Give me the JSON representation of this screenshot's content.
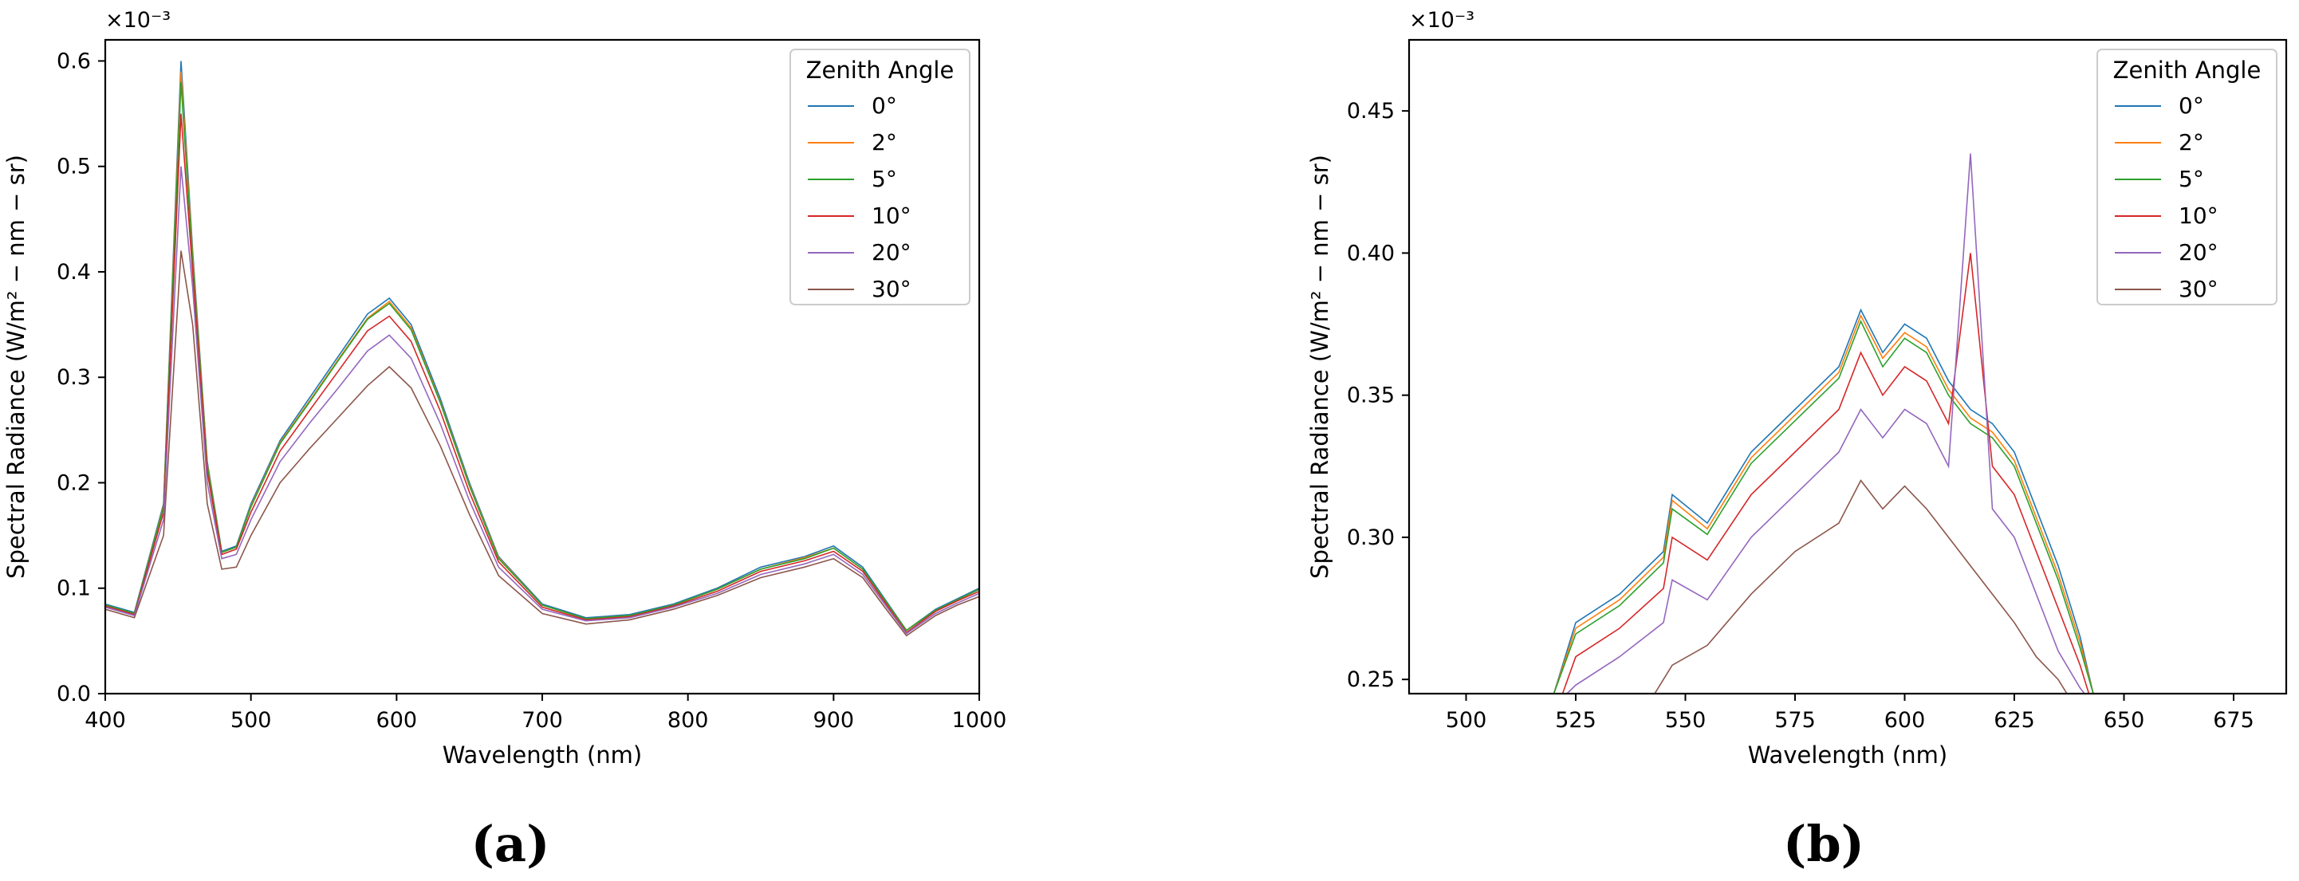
{
  "chart_data": [
    {
      "panel": "(a)",
      "type": "line",
      "xlabel": "Wavelength (nm)",
      "ylabel": "Spectral Radiance (W/m² − nm − sr)",
      "y_multiplier": "×10⁻³",
      "xlim": [
        400,
        1000
      ],
      "ylim": [
        0,
        0.62
      ],
      "xticks": [
        400,
        500,
        600,
        700,
        800,
        900,
        1000
      ],
      "yticks": [
        0.0,
        0.1,
        0.2,
        0.3,
        0.4,
        0.5,
        0.6
      ],
      "ytick_labels": [
        "0.0",
        "0.1",
        "0.2",
        "0.3",
        "0.4",
        "0.5",
        "0.6"
      ],
      "grid": false,
      "legend": {
        "title": "Zenith Angle",
        "placement": "top-right",
        "entries": [
          "0°",
          "2°",
          "5°",
          "10°",
          "20°",
          "30°"
        ]
      },
      "series": [
        {
          "name": "0°",
          "color": "#1f77b4",
          "x": [
            400,
            420,
            440,
            452,
            460,
            470,
            480,
            490,
            500,
            520,
            540,
            560,
            580,
            595,
            610,
            630,
            650,
            670,
            700,
            730,
            760,
            790,
            820,
            850,
            880,
            900,
            920,
            935,
            950,
            970,
            985,
            1000
          ],
          "y": [
            0.085,
            0.077,
            0.18,
            0.6,
            0.42,
            0.22,
            0.135,
            0.14,
            0.18,
            0.24,
            0.28,
            0.32,
            0.36,
            0.375,
            0.35,
            0.28,
            0.2,
            0.13,
            0.085,
            0.072,
            0.075,
            0.085,
            0.1,
            0.12,
            0.13,
            0.14,
            0.12,
            0.09,
            0.06,
            0.08,
            0.09,
            0.1
          ]
        },
        {
          "name": "2°",
          "color": "#ff7f0e",
          "x": [
            400,
            420,
            440,
            452,
            460,
            470,
            480,
            490,
            500,
            520,
            540,
            560,
            580,
            595,
            610,
            630,
            650,
            670,
            700,
            730,
            760,
            790,
            820,
            850,
            880,
            900,
            920,
            935,
            950,
            970,
            985,
            1000
          ],
          "y": [
            0.084,
            0.076,
            0.178,
            0.59,
            0.415,
            0.218,
            0.134,
            0.139,
            0.178,
            0.238,
            0.277,
            0.317,
            0.356,
            0.372,
            0.347,
            0.277,
            0.198,
            0.129,
            0.084,
            0.071,
            0.074,
            0.084,
            0.099,
            0.118,
            0.129,
            0.138,
            0.118,
            0.089,
            0.06,
            0.079,
            0.089,
            0.099
          ]
        },
        {
          "name": "5°",
          "color": "#2ca02c",
          "x": [
            400,
            420,
            440,
            452,
            460,
            470,
            480,
            490,
            500,
            520,
            540,
            560,
            580,
            595,
            610,
            630,
            650,
            670,
            700,
            730,
            760,
            790,
            820,
            850,
            880,
            900,
            920,
            935,
            950,
            970,
            985,
            1000
          ],
          "y": [
            0.084,
            0.076,
            0.177,
            0.58,
            0.41,
            0.216,
            0.134,
            0.139,
            0.177,
            0.237,
            0.276,
            0.316,
            0.355,
            0.37,
            0.345,
            0.276,
            0.197,
            0.128,
            0.084,
            0.071,
            0.074,
            0.084,
            0.099,
            0.118,
            0.128,
            0.138,
            0.118,
            0.089,
            0.06,
            0.079,
            0.089,
            0.099
          ]
        },
        {
          "name": "10°",
          "color": "#d62728",
          "x": [
            400,
            420,
            440,
            452,
            460,
            470,
            480,
            490,
            500,
            520,
            540,
            560,
            580,
            595,
            610,
            630,
            650,
            670,
            700,
            730,
            760,
            790,
            820,
            850,
            880,
            900,
            920,
            935,
            950,
            970,
            985,
            1000
          ],
          "y": [
            0.083,
            0.075,
            0.172,
            0.55,
            0.4,
            0.21,
            0.132,
            0.137,
            0.172,
            0.23,
            0.268,
            0.306,
            0.344,
            0.358,
            0.334,
            0.268,
            0.191,
            0.125,
            0.082,
            0.07,
            0.073,
            0.083,
            0.097,
            0.116,
            0.126,
            0.135,
            0.116,
            0.087,
            0.058,
            0.078,
            0.088,
            0.097
          ]
        },
        {
          "name": "20°",
          "color": "#9467bd",
          "x": [
            400,
            420,
            440,
            452,
            460,
            470,
            480,
            490,
            500,
            520,
            540,
            560,
            580,
            595,
            610,
            630,
            650,
            670,
            700,
            730,
            760,
            790,
            820,
            850,
            880,
            900,
            920,
            935,
            950,
            970,
            985,
            1000
          ],
          "y": [
            0.082,
            0.074,
            0.165,
            0.5,
            0.385,
            0.2,
            0.128,
            0.132,
            0.165,
            0.22,
            0.256,
            0.29,
            0.325,
            0.34,
            0.318,
            0.256,
            0.183,
            0.12,
            0.08,
            0.069,
            0.072,
            0.082,
            0.095,
            0.113,
            0.123,
            0.132,
            0.113,
            0.085,
            0.057,
            0.076,
            0.086,
            0.095
          ]
        },
        {
          "name": "30°",
          "color": "#8c564b",
          "x": [
            400,
            420,
            440,
            452,
            460,
            470,
            480,
            490,
            500,
            520,
            540,
            560,
            580,
            595,
            610,
            630,
            650,
            670,
            700,
            730,
            760,
            790,
            820,
            850,
            880,
            900,
            920,
            935,
            950,
            970,
            985,
            1000
          ],
          "y": [
            0.08,
            0.072,
            0.15,
            0.42,
            0.35,
            0.18,
            0.118,
            0.12,
            0.15,
            0.2,
            0.232,
            0.262,
            0.292,
            0.31,
            0.29,
            0.235,
            0.17,
            0.112,
            0.076,
            0.066,
            0.07,
            0.08,
            0.093,
            0.11,
            0.12,
            0.128,
            0.11,
            0.082,
            0.055,
            0.074,
            0.084,
            0.092
          ]
        }
      ]
    },
    {
      "panel": "(b)",
      "type": "line",
      "xlabel": "Wavelength (nm)",
      "ylabel": "Spectral Radiance (W/m² − nm − sr)",
      "y_multiplier": "×10⁻³",
      "xlim": [
        487,
        687
      ],
      "ylim": [
        0.245,
        0.475
      ],
      "xticks": [
        500,
        525,
        550,
        575,
        600,
        625,
        650,
        675
      ],
      "yticks": [
        0.25,
        0.3,
        0.35,
        0.4,
        0.45
      ],
      "ytick_labels": [
        "0.25",
        "0.30",
        "0.35",
        "0.40",
        "0.45"
      ],
      "grid": false,
      "legend": {
        "title": "Zenith Angle",
        "placement": "top-right",
        "entries": [
          "0°",
          "2°",
          "5°",
          "10°",
          "20°",
          "30°"
        ]
      },
      "series": [
        {
          "name": "0°",
          "color": "#1f77b4",
          "x": [
            520,
            525,
            535,
            545,
            547,
            555,
            565,
            575,
            585,
            590,
            595,
            600,
            605,
            610,
            615,
            620,
            625,
            630,
            635,
            640,
            643
          ],
          "y": [
            0.245,
            0.27,
            0.28,
            0.295,
            0.315,
            0.305,
            0.33,
            0.345,
            0.36,
            0.38,
            0.365,
            0.375,
            0.37,
            0.355,
            0.345,
            0.34,
            0.33,
            0.31,
            0.29,
            0.265,
            0.245
          ]
        },
        {
          "name": "2°",
          "color": "#ff7f0e",
          "x": [
            520,
            525,
            535,
            545,
            547,
            555,
            565,
            575,
            585,
            590,
            595,
            600,
            605,
            610,
            615,
            620,
            625,
            630,
            635,
            640,
            643
          ],
          "y": [
            0.245,
            0.268,
            0.278,
            0.293,
            0.313,
            0.303,
            0.328,
            0.343,
            0.358,
            0.378,
            0.363,
            0.372,
            0.367,
            0.352,
            0.342,
            0.337,
            0.327,
            0.307,
            0.287,
            0.263,
            0.245
          ]
        },
        {
          "name": "5°",
          "color": "#2ca02c",
          "x": [
            520,
            525,
            535,
            545,
            547,
            555,
            565,
            575,
            585,
            590,
            595,
            600,
            605,
            610,
            615,
            620,
            625,
            630,
            635,
            640,
            643
          ],
          "y": [
            0.245,
            0.266,
            0.276,
            0.291,
            0.31,
            0.301,
            0.326,
            0.341,
            0.356,
            0.376,
            0.36,
            0.37,
            0.365,
            0.35,
            0.34,
            0.335,
            0.325,
            0.305,
            0.285,
            0.261,
            0.245
          ]
        },
        {
          "name": "10°",
          "color": "#d62728",
          "x": [
            522,
            525,
            535,
            545,
            547,
            555,
            565,
            575,
            585,
            590,
            595,
            600,
            605,
            610,
            615,
            620,
            625,
            630,
            635,
            640,
            642
          ],
          "y": [
            0.245,
            0.258,
            0.268,
            0.282,
            0.3,
            0.292,
            0.315,
            0.33,
            0.345,
            0.365,
            0.35,
            0.36,
            0.355,
            0.34,
            0.4,
            0.325,
            0.315,
            0.295,
            0.275,
            0.255,
            0.245
          ]
        },
        {
          "name": "20°",
          "color": "#9467bd",
          "x": [
            523,
            525,
            535,
            545,
            547,
            555,
            565,
            575,
            585,
            590,
            595,
            600,
            605,
            610,
            615,
            620,
            625,
            630,
            635,
            640,
            641
          ],
          "y": [
            0.245,
            0.248,
            0.258,
            0.27,
            0.285,
            0.278,
            0.3,
            0.315,
            0.33,
            0.345,
            0.335,
            0.345,
            0.34,
            0.325,
            0.435,
            0.31,
            0.3,
            0.28,
            0.26,
            0.247,
            0.245
          ]
        },
        {
          "name": "30°",
          "color": "#8c564b",
          "x": [
            543,
            547,
            555,
            565,
            575,
            585,
            590,
            595,
            600,
            605,
            610,
            615,
            620,
            625,
            630,
            635,
            637
          ],
          "y": [
            0.245,
            0.255,
            0.262,
            0.28,
            0.295,
            0.305,
            0.32,
            0.31,
            0.318,
            0.31,
            0.3,
            0.29,
            0.28,
            0.27,
            0.258,
            0.25,
            0.245
          ]
        }
      ]
    }
  ]
}
